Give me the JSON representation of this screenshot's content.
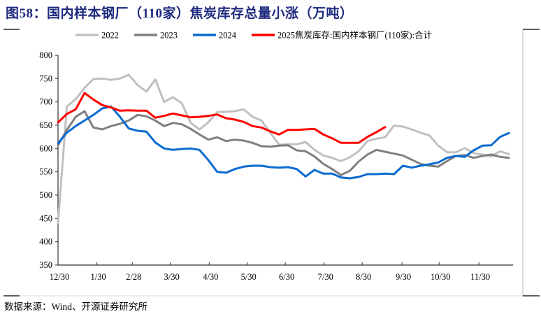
{
  "title": "图58：国内样本钢厂（110家）焦炭库存总量小涨（万吨）",
  "source": "数据来源：Wind、开源证券研究所",
  "chart_data": {
    "type": "line",
    "title": "国内样本钢厂（110家）焦炭库存总量小涨（万吨）",
    "xlabel": "",
    "ylabel": "万吨",
    "x_unit": "week index since 12/30",
    "ylim": [
      350,
      800
    ],
    "yticks": [
      350,
      400,
      450,
      500,
      550,
      600,
      650,
      700,
      750,
      800
    ],
    "xticks": [
      {
        "week": 0,
        "label": "12/30"
      },
      {
        "week": 4.4,
        "label": "1/30"
      },
      {
        "week": 8.4,
        "label": "2/28"
      },
      {
        "week": 12.7,
        "label": "3/30"
      },
      {
        "week": 17.1,
        "label": "4/30"
      },
      {
        "week": 21.4,
        "label": "5/30"
      },
      {
        "week": 25.7,
        "label": "6/30"
      },
      {
        "week": 30.1,
        "label": "7/30"
      },
      {
        "week": 34.4,
        "label": "8/30"
      },
      {
        "week": 38.9,
        "label": "9/30"
      },
      {
        "week": 43.1,
        "label": "10/30"
      },
      {
        "week": 47.6,
        "label": "11/30"
      }
    ],
    "xmax": 51.2,
    "grid": false,
    "legend_position": "top",
    "series": [
      {
        "name": "2022",
        "color": "#c0c0c0",
        "values": [
          440,
          690,
          706,
          730,
          749,
          750,
          747,
          750,
          758,
          736,
          722,
          748,
          700,
          710,
          697,
          655,
          641,
          656,
          678,
          679,
          680,
          684,
          668,
          660,
          634,
          608,
          609,
          609,
          614,
          597,
          585,
          580,
          573,
          581,
          594,
          616,
          621,
          624,
          649,
          647,
          641,
          634,
          628,
          606,
          592,
          592,
          601,
          590,
          587,
          583,
          594,
          588
        ]
      },
      {
        "name": "2023",
        "color": "#808080",
        "values": [
          607,
          640,
          668,
          680,
          645,
          641,
          648,
          653,
          660,
          672,
          669,
          660,
          648,
          655,
          652,
          642,
          630,
          619,
          624,
          616,
          619,
          617,
          612,
          605,
          604,
          606,
          607,
          596,
          594,
          583,
          567,
          556,
          543,
          552,
          572,
          587,
          597,
          593,
          589,
          585,
          576,
          567,
          563,
          561,
          573,
          584,
          586,
          580,
          584,
          587,
          582,
          580
        ]
      },
      {
        "name": "2024",
        "color": "#0a6bd0",
        "values": [
          611,
          634,
          648,
          660,
          672,
          686,
          690,
          668,
          643,
          638,
          636,
          613,
          600,
          597,
          599,
          600,
          597,
          575,
          550,
          548,
          556,
          561,
          563,
          563,
          560,
          559,
          560,
          556,
          540,
          554,
          546,
          546,
          538,
          536,
          539,
          545,
          545,
          546,
          545,
          563,
          559,
          563,
          566,
          570,
          580,
          584,
          582,
          596,
          606,
          607,
          625,
          633
        ]
      },
      {
        "name": "2025焦炭库存:国内样本钢厂(110家):合计",
        "color": "#ff0000",
        "values": [
          656,
          674,
          684,
          719,
          705,
          693,
          688,
          681,
          682,
          681,
          681,
          666,
          670,
          675,
          671,
          667,
          668,
          670,
          673,
          665,
          662,
          657,
          648,
          645,
          637,
          630,
          640,
          640,
          641,
          642,
          630,
          622,
          612,
          612,
          612,
          625,
          635,
          646
        ]
      }
    ]
  }
}
